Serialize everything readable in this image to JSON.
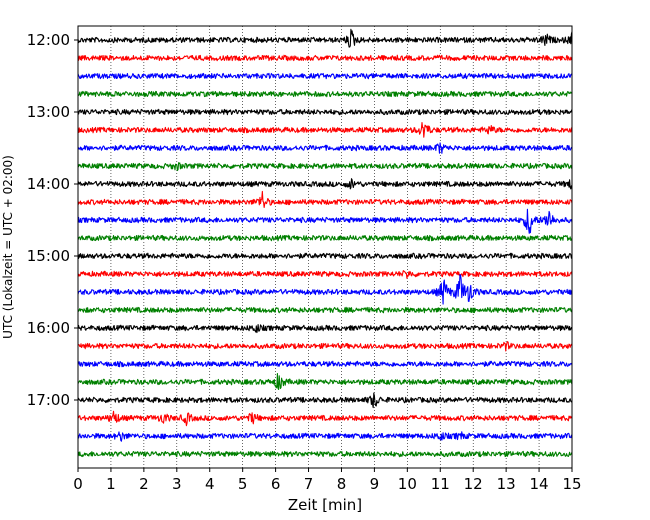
{
  "chart_data": {
    "type": "line",
    "title": "",
    "xlabel": "Zeit  [min]",
    "ylabel": "UTC (Lokalzeit = UTC + 02:00)",
    "xlim": [
      0,
      15
    ],
    "x_ticks": [
      "0",
      "1",
      "2",
      "3",
      "4",
      "5",
      "6",
      "7",
      "8",
      "9",
      "10",
      "11",
      "12",
      "13",
      "14",
      "15"
    ],
    "y_ticks": [
      "12:00",
      "13:00",
      "14:00",
      "15:00",
      "16:00",
      "17:00"
    ],
    "grid": "vertical dotted at each minute",
    "colors": [
      "#000000",
      "#ff0000",
      "#0000ff",
      "#008000"
    ],
    "series": [
      {
        "start": "12:00",
        "color": "#000000",
        "events": [
          {
            "x": 8.3,
            "amp": 1.0
          },
          {
            "x": 14.2,
            "amp": 0.6
          },
          {
            "x": 15.0,
            "amp": 0.6
          }
        ]
      },
      {
        "start": "12:15",
        "color": "#ff0000",
        "events": []
      },
      {
        "start": "12:30",
        "color": "#0000ff",
        "events": []
      },
      {
        "start": "12:45",
        "color": "#008000",
        "events": []
      },
      {
        "start": "13:00",
        "color": "#000000",
        "events": []
      },
      {
        "start": "13:15",
        "color": "#ff0000",
        "events": [
          {
            "x": 10.5,
            "amp": 1.1
          },
          {
            "x": 12.5,
            "amp": 0.4
          }
        ]
      },
      {
        "start": "13:30",
        "color": "#0000ff",
        "events": [
          {
            "x": 11.0,
            "amp": 0.5
          }
        ]
      },
      {
        "start": "13:45",
        "color": "#008000",
        "events": [
          {
            "x": 3.0,
            "amp": 0.3
          }
        ]
      },
      {
        "start": "14:00",
        "color": "#000000",
        "events": [
          {
            "x": 8.3,
            "amp": 0.4
          },
          {
            "x": 15.0,
            "amp": 0.5
          }
        ]
      },
      {
        "start": "14:15",
        "color": "#ff0000",
        "events": [
          {
            "x": 5.6,
            "amp": 0.9
          }
        ]
      },
      {
        "start": "14:30",
        "color": "#0000ff",
        "events": [
          {
            "x": 13.7,
            "amp": 1.7
          },
          {
            "x": 14.3,
            "amp": 1.1
          }
        ]
      },
      {
        "start": "14:45",
        "color": "#008000",
        "events": []
      },
      {
        "start": "15:00",
        "color": "#000000",
        "events": []
      },
      {
        "start": "15:15",
        "color": "#ff0000",
        "events": [
          {
            "x": 10.0,
            "amp": 0.3
          }
        ]
      },
      {
        "start": "15:30",
        "color": "#0000ff",
        "events": [
          {
            "x": 11.1,
            "amp": 1.4
          },
          {
            "x": 11.6,
            "amp": 1.7
          },
          {
            "x": 11.9,
            "amp": 1.1
          }
        ]
      },
      {
        "start": "15:45",
        "color": "#008000",
        "events": []
      },
      {
        "start": "16:00",
        "color": "#000000",
        "events": [
          {
            "x": 5.4,
            "amp": 0.4
          }
        ]
      },
      {
        "start": "16:15",
        "color": "#ff0000",
        "events": [
          {
            "x": 13.0,
            "amp": 0.3
          }
        ]
      },
      {
        "start": "16:30",
        "color": "#0000ff",
        "events": []
      },
      {
        "start": "16:45",
        "color": "#008000",
        "events": [
          {
            "x": 6.1,
            "amp": 0.9
          }
        ]
      },
      {
        "start": "17:00",
        "color": "#000000",
        "events": [
          {
            "x": 9.0,
            "amp": 0.8
          }
        ]
      },
      {
        "start": "17:15",
        "color": "#ff0000",
        "events": [
          {
            "x": 1.1,
            "amp": 0.7
          },
          {
            "x": 2.6,
            "amp": 0.5
          },
          {
            "x": 3.3,
            "amp": 0.5
          },
          {
            "x": 5.3,
            "amp": 0.5
          }
        ]
      },
      {
        "start": "17:30",
        "color": "#0000ff",
        "events": [
          {
            "x": 1.3,
            "amp": 0.4
          },
          {
            "x": 11.0,
            "amp": 0.4
          },
          {
            "x": 11.6,
            "amp": 0.3
          }
        ]
      },
      {
        "start": "17:45",
        "color": "#008000",
        "events": []
      }
    ]
  }
}
